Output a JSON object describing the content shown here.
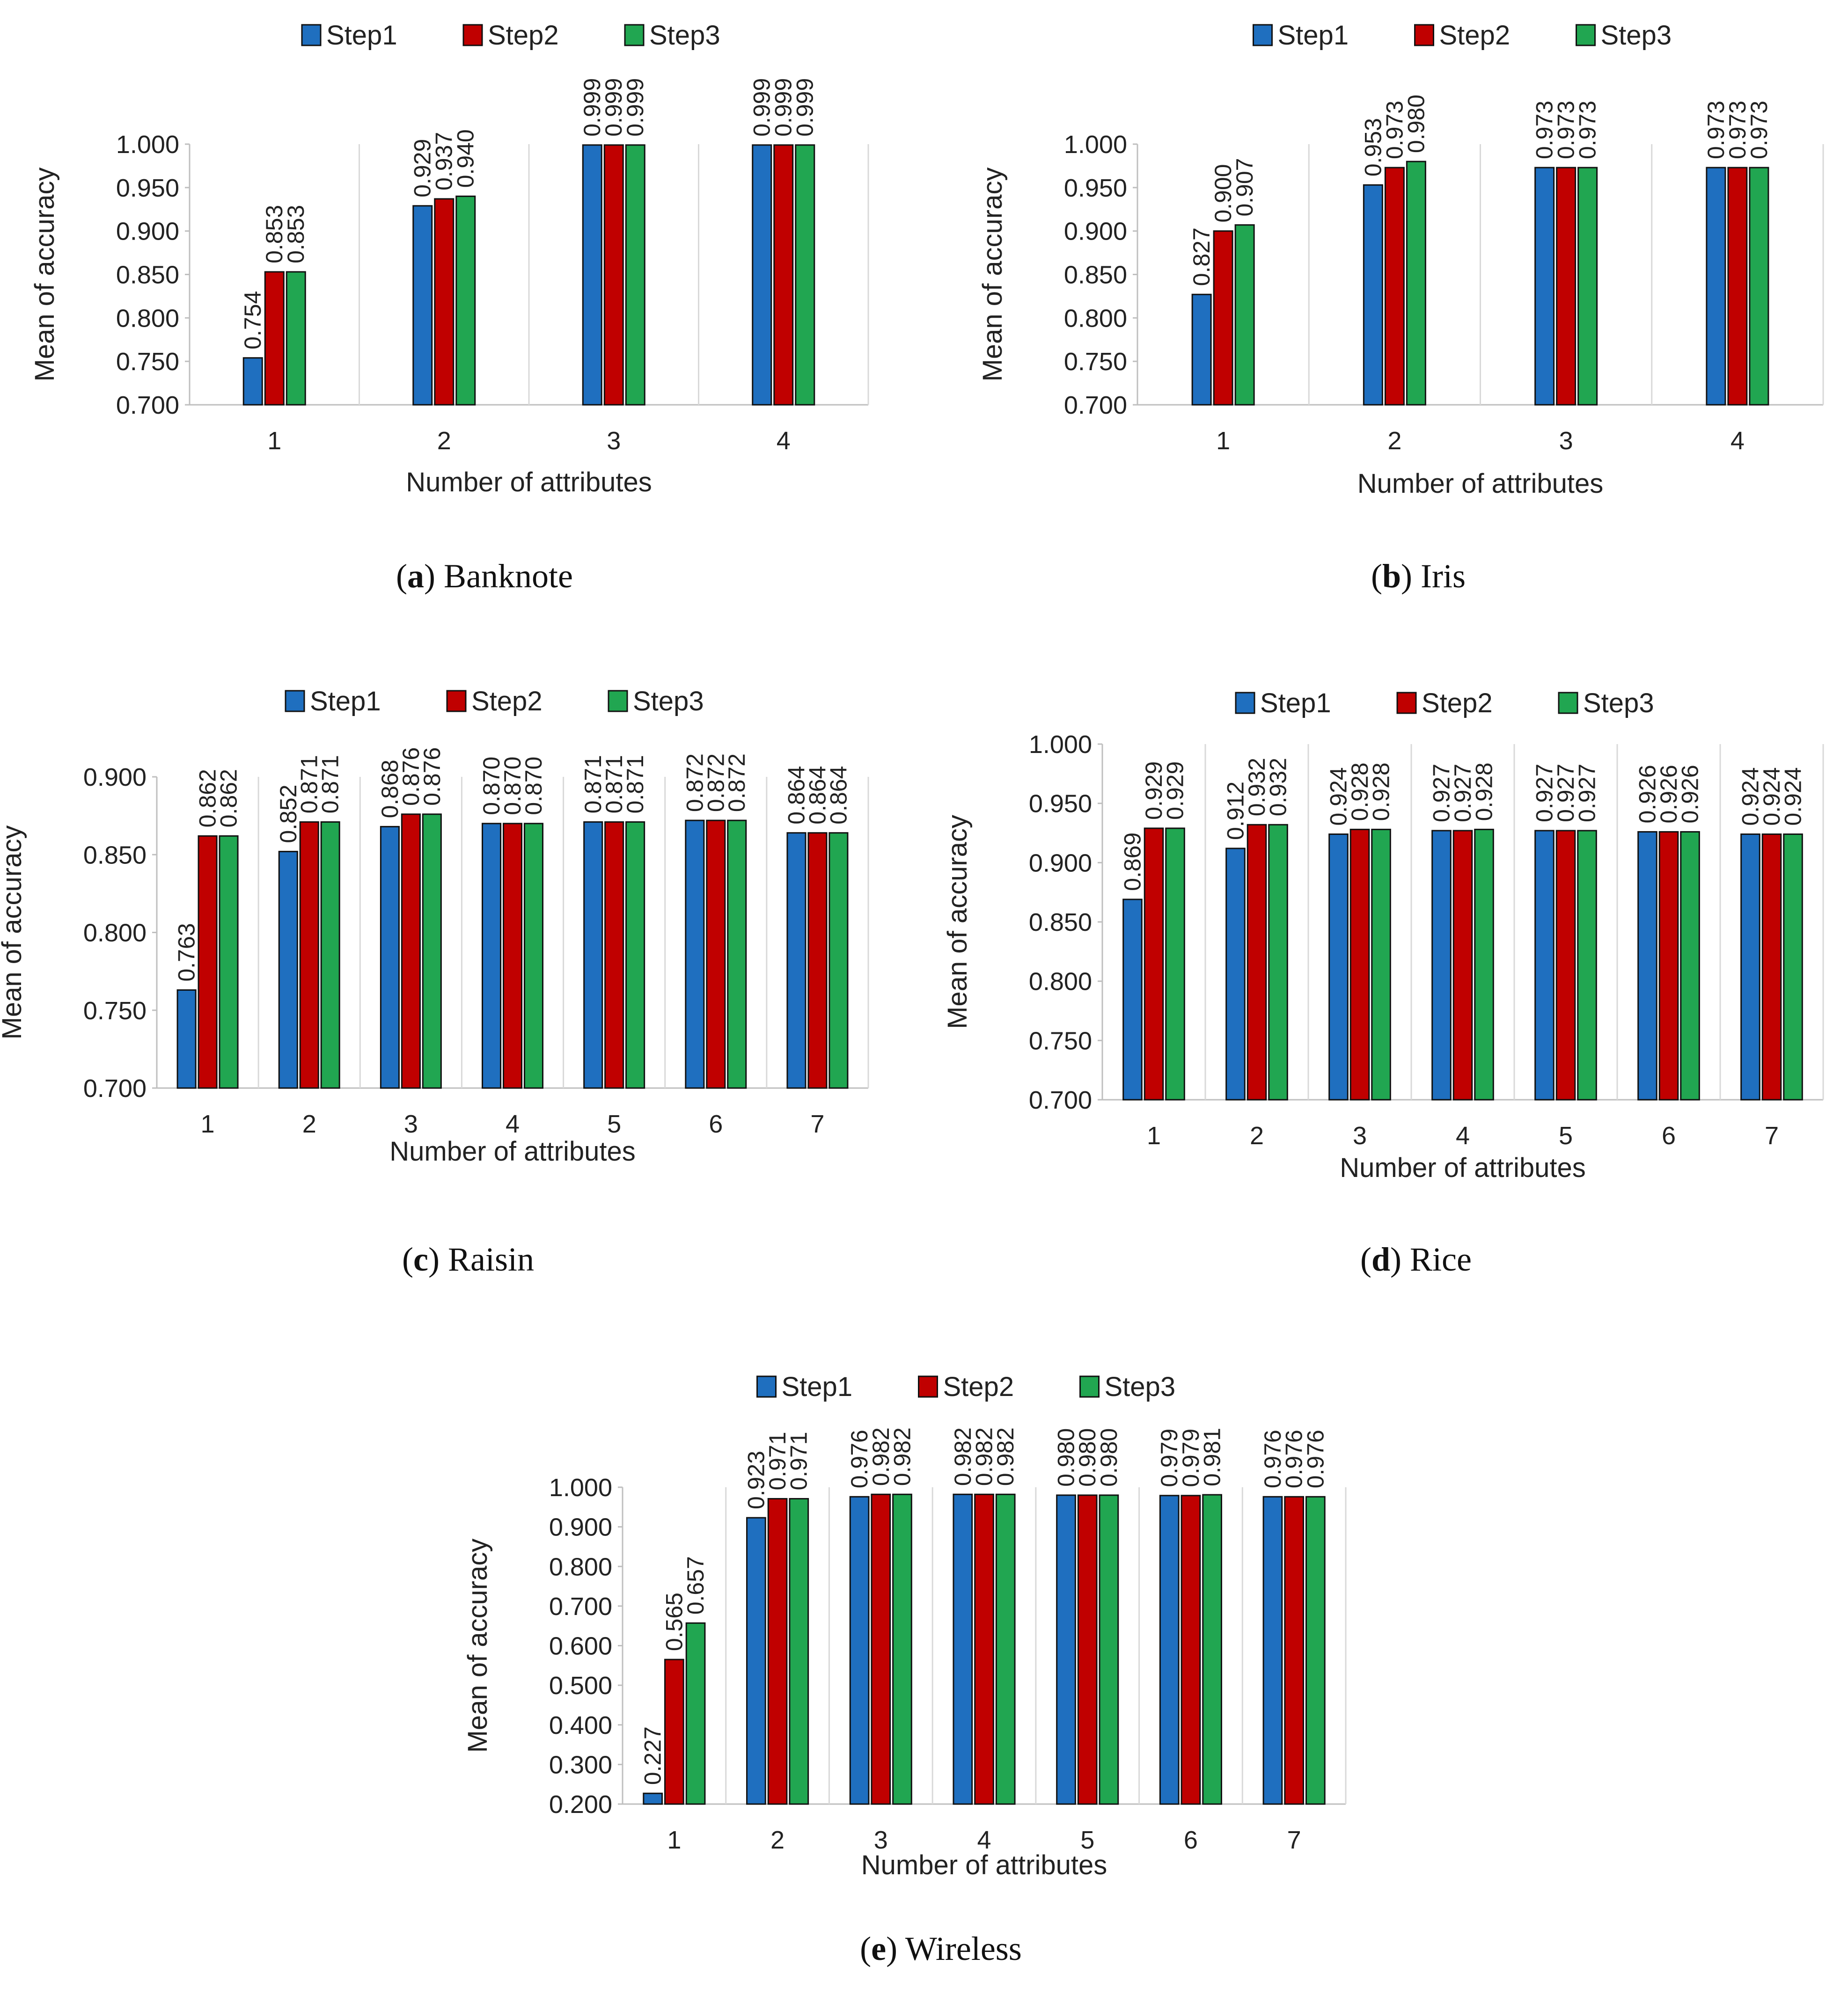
{
  "colors": {
    "Step1": "#1f6fbf",
    "Step2": "#c00000",
    "Step3": "#21a651"
  },
  "chart_data": [
    {
      "type": "bar",
      "caption_letter": "a",
      "caption_name": "Banknote",
      "ylabel": "Mean of accuracy",
      "xlabel": "Number of attributes",
      "ylim": [
        0.7,
        1.0
      ],
      "yticks": [
        "0.700",
        "0.750",
        "0.800",
        "0.850",
        "0.900",
        "0.950",
        "1.000"
      ],
      "legend": [
        "Step1",
        "Step2",
        "Step3"
      ],
      "categories": [
        "1",
        "2",
        "3",
        "4"
      ],
      "series": [
        {
          "name": "Step1",
          "values": [
            0.754,
            0.929,
            0.999,
            0.999
          ],
          "labels": [
            "0.754",
            "0.929",
            "0.999",
            "0.999"
          ]
        },
        {
          "name": "Step2",
          "values": [
            0.853,
            0.937,
            0.999,
            0.999
          ],
          "labels": [
            "0.853",
            "0.937",
            "0.999",
            "0.999"
          ]
        },
        {
          "name": "Step3",
          "values": [
            0.853,
            0.94,
            0.999,
            0.999
          ],
          "labels": [
            "0.853",
            "0.940",
            "0.999",
            "0.999"
          ]
        }
      ]
    },
    {
      "type": "bar",
      "caption_letter": "b",
      "caption_name": "Iris",
      "ylabel": "Mean of accuracy",
      "xlabel": "Number of attributes",
      "ylim": [
        0.7,
        1.0
      ],
      "yticks": [
        "0.700",
        "0.750",
        "0.800",
        "0.850",
        "0.900",
        "0.950",
        "1.000"
      ],
      "legend": [
        "Step1",
        "Step2",
        "Step3"
      ],
      "categories": [
        "1",
        "2",
        "3",
        "4"
      ],
      "series": [
        {
          "name": "Step1",
          "values": [
            0.827,
            0.953,
            0.973,
            0.973
          ],
          "labels": [
            "0.827",
            "0.953",
            "0.973",
            "0.973"
          ]
        },
        {
          "name": "Step2",
          "values": [
            0.9,
            0.973,
            0.973,
            0.973
          ],
          "labels": [
            "0.900",
            "0.973",
            "0.973",
            "0.973"
          ]
        },
        {
          "name": "Step3",
          "values": [
            0.907,
            0.98,
            0.973,
            0.973
          ],
          "labels": [
            "0.907",
            "0.980",
            "0.973",
            "0.973"
          ]
        }
      ]
    },
    {
      "type": "bar",
      "caption_letter": "c",
      "caption_name": "Raisin",
      "ylabel": "Mean of accuracy",
      "xlabel": "Number of attributes",
      "ylim": [
        0.7,
        0.9
      ],
      "yticks": [
        "0.700",
        "0.750",
        "0.800",
        "0.850",
        "0.900"
      ],
      "legend": [
        "Step1",
        "Step2",
        "Step3"
      ],
      "categories": [
        "1",
        "2",
        "3",
        "4",
        "5",
        "6",
        "7"
      ],
      "series": [
        {
          "name": "Step1",
          "values": [
            0.763,
            0.852,
            0.868,
            0.87,
            0.871,
            0.872,
            0.864
          ],
          "labels": [
            "0.763",
            "0.852",
            "0.868",
            "0.870",
            "0.871",
            "0.872",
            "0.864"
          ]
        },
        {
          "name": "Step2",
          "values": [
            0.862,
            0.871,
            0.876,
            0.87,
            0.871,
            0.872,
            0.864
          ],
          "labels": [
            "0.862",
            "0.871",
            "0.876",
            "0.870",
            "0.871",
            "0.872",
            "0.864"
          ]
        },
        {
          "name": "Step3",
          "values": [
            0.862,
            0.871,
            0.876,
            0.87,
            0.871,
            0.872,
            0.864
          ],
          "labels": [
            "0.862",
            "0.871",
            "0.876",
            "0.870",
            "0.871",
            "0.872",
            "0.864"
          ]
        }
      ]
    },
    {
      "type": "bar",
      "caption_letter": "d",
      "caption_name": "Rice",
      "ylabel": "Mean of accuracy",
      "xlabel": "Number of attributes",
      "ylim": [
        0.7,
        1.0
      ],
      "yticks": [
        "0.700",
        "0.750",
        "0.800",
        "0.850",
        "0.900",
        "0.950",
        "1.000"
      ],
      "legend": [
        "Step1",
        "Step2",
        "Step3"
      ],
      "categories": [
        "1",
        "2",
        "3",
        "4",
        "5",
        "6",
        "7"
      ],
      "series": [
        {
          "name": "Step1",
          "values": [
            0.869,
            0.912,
            0.924,
            0.927,
            0.927,
            0.926,
            0.924
          ],
          "labels": [
            "0.869",
            "0.912",
            "0.924",
            "0.927",
            "0.927",
            "0.926",
            "0.924"
          ]
        },
        {
          "name": "Step2",
          "values": [
            0.929,
            0.932,
            0.928,
            0.927,
            0.927,
            0.926,
            0.924
          ],
          "labels": [
            "0.929",
            "0.932",
            "0.928",
            "0.927",
            "0.927",
            "0.926",
            "0.924"
          ]
        },
        {
          "name": "Step3",
          "values": [
            0.929,
            0.932,
            0.928,
            0.928,
            0.927,
            0.926,
            0.924
          ],
          "labels": [
            "0.929",
            "0.932",
            "0.928",
            "0.928",
            "0.927",
            "0.926",
            "0.924"
          ]
        }
      ]
    },
    {
      "type": "bar",
      "caption_letter": "e",
      "caption_name": "Wireless",
      "ylabel": "Mean of accuracy",
      "xlabel": "Number of attributes",
      "ylim": [
        0.2,
        1.0
      ],
      "yticks": [
        "0.200",
        "0.300",
        "0.400",
        "0.500",
        "0.600",
        "0.700",
        "0.800",
        "0.900",
        "1.000"
      ],
      "legend": [
        "Step1",
        "Step2",
        "Step3"
      ],
      "categories": [
        "1",
        "2",
        "3",
        "4",
        "5",
        "6",
        "7"
      ],
      "series": [
        {
          "name": "Step1",
          "values": [
            0.227,
            0.923,
            0.976,
            0.982,
            0.98,
            0.979,
            0.976
          ],
          "labels": [
            "0.227",
            "0.923",
            "0.976",
            "0.982",
            "0.980",
            "0.979",
            "0.976"
          ]
        },
        {
          "name": "Step2",
          "values": [
            0.565,
            0.971,
            0.982,
            0.982,
            0.98,
            0.979,
            0.976
          ],
          "labels": [
            "0.565",
            "0.971",
            "0.982",
            "0.982",
            "0.980",
            "0.979",
            "0.976"
          ]
        },
        {
          "name": "Step3",
          "values": [
            0.657,
            0.971,
            0.982,
            0.982,
            0.98,
            0.981,
            0.976
          ],
          "labels": [
            "0.657",
            "0.971",
            "0.982",
            "0.982",
            "0.980",
            "0.981",
            "0.976"
          ]
        }
      ]
    }
  ]
}
